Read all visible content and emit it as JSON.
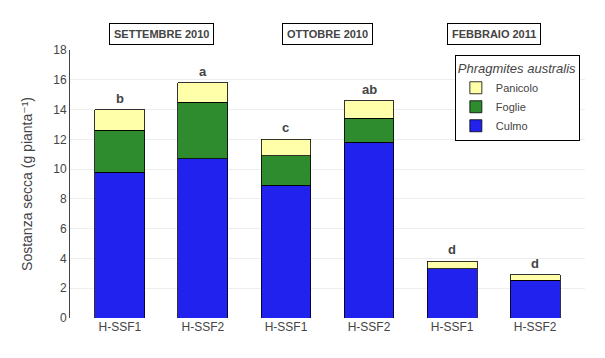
{
  "chart_data": {
    "type": "bar",
    "stacked": true,
    "categories": [
      "H-SSF1",
      "H-SSF2",
      "H-SSF1",
      "H-SSF2",
      "H-SSF1",
      "H-SSF2"
    ],
    "category_groups": [
      "SETTEMBRE 2010",
      "SETTEMBRE 2010",
      "OTTOBRE 2010",
      "OTTOBRE 2010",
      "FEBBRAIO 2011",
      "FEBBRAIO 2011"
    ],
    "series": [
      {
        "name": "Culmo",
        "color": "#2222EE",
        "values": [
          9.8,
          10.7,
          8.9,
          11.8,
          3.3,
          2.55
        ]
      },
      {
        "name": "Foglie",
        "color": "#2E8B2E",
        "values": [
          2.8,
          3.8,
          2.0,
          1.6,
          0.0,
          0.0
        ]
      },
      {
        "name": "Panicolo",
        "color": "#FFFFAA",
        "values": [
          1.4,
          1.3,
          1.1,
          1.2,
          0.5,
          0.35
        ]
      }
    ],
    "bar_labels": [
      "b",
      "a",
      "c",
      "ab",
      "d",
      "d"
    ],
    "ylabel": "Sostanza secca (g pianta⁻¹)",
    "legend_title": "Phragmites australis",
    "legend": "upper right",
    "ylim": [
      0,
      18
    ],
    "yticks": [
      0,
      2,
      4,
      6,
      8,
      10,
      12,
      14,
      16,
      18
    ],
    "grid": true
  }
}
